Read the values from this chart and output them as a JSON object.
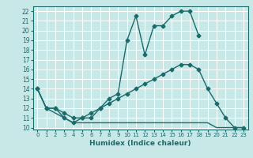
{
  "xlabel": "Humidex (Indice chaleur)",
  "background_color": "#c8e8e8",
  "grid_color": "#ffffff",
  "line_color": "#1a6b6b",
  "xlim": [
    -0.5,
    23.5
  ],
  "ylim": [
    9.8,
    22.5
  ],
  "yticks": [
    10,
    11,
    12,
    13,
    14,
    15,
    16,
    17,
    18,
    19,
    20,
    21,
    22
  ],
  "xticks": [
    0,
    1,
    2,
    3,
    4,
    5,
    6,
    7,
    8,
    9,
    10,
    11,
    12,
    13,
    14,
    15,
    16,
    17,
    18,
    19,
    20,
    21,
    22,
    23
  ],
  "line1_x": [
    0,
    1,
    2,
    3,
    4,
    5,
    6,
    7,
    8,
    9,
    10,
    11,
    12,
    13,
    14,
    15,
    16,
    17,
    18
  ],
  "line1_y": [
    14,
    12,
    12,
    11,
    10.5,
    11,
    11,
    12,
    13,
    13.5,
    19,
    21.5,
    17.5,
    20.5,
    20.5,
    21.5,
    22,
    22,
    19.5
  ],
  "line2_x": [
    0,
    1,
    2,
    3,
    4,
    5,
    6,
    7,
    8,
    9,
    10,
    11,
    12,
    13,
    14,
    15,
    16,
    17,
    18,
    19,
    20,
    21,
    22,
    23
  ],
  "line2_y": [
    14,
    12,
    12,
    11.5,
    11,
    11,
    11.5,
    12,
    12.5,
    13,
    13.5,
    14,
    14.5,
    15,
    15.5,
    16,
    16.5,
    16.5,
    16,
    14,
    12.5,
    11,
    10,
    10
  ],
  "line3_x": [
    0,
    1,
    2,
    3,
    4,
    5,
    6,
    7,
    8,
    9,
    10,
    11,
    12,
    13,
    14,
    15,
    16,
    17,
    18,
    19,
    20,
    21,
    22,
    23
  ],
  "line3_y": [
    14,
    12,
    11.5,
    11,
    10.5,
    10.5,
    10.5,
    10.5,
    10.5,
    10.5,
    10.5,
    10.5,
    10.5,
    10.5,
    10.5,
    10.5,
    10.5,
    10.5,
    10.5,
    10.5,
    10,
    10,
    10,
    10
  ],
  "marker1": true,
  "marker2": true,
  "marker3": false
}
